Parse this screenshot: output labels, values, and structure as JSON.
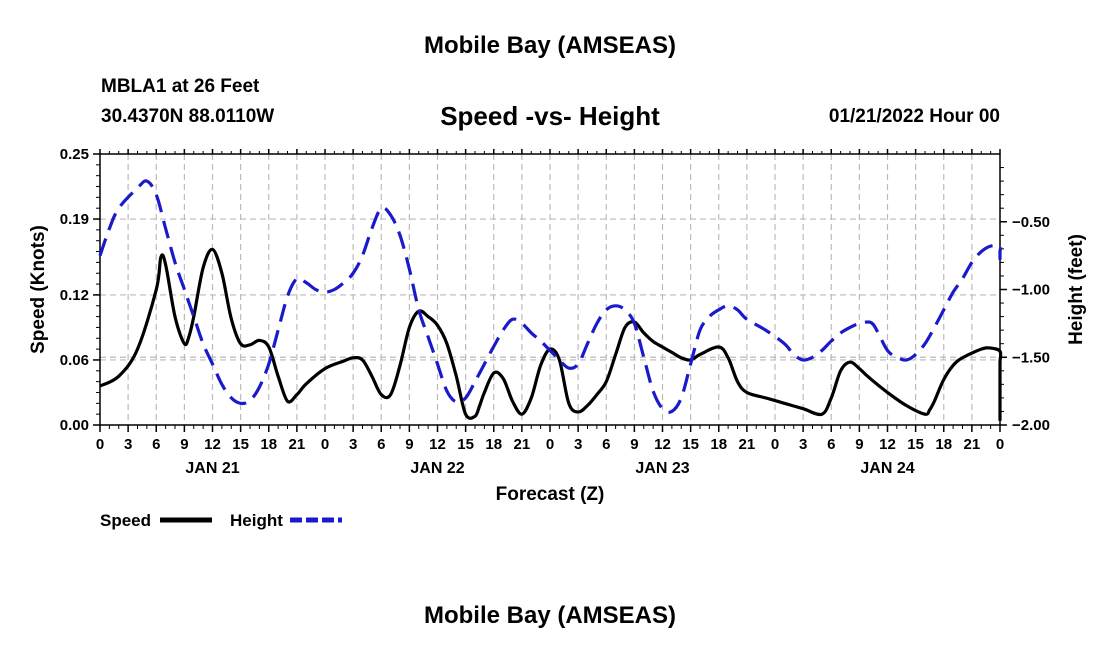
{
  "page": {
    "title": "Mobile Bay (AMSEAS)",
    "station": "MBLA1 at 26 Feet",
    "coords": "30.4370N  88.0110W",
    "subtitle": "Speed -vs- Height",
    "datetime": "01/21/2022 Hour 00",
    "bottom_title": "Mobile Bay (AMSEAS)"
  },
  "chart_data": {
    "type": "line",
    "title": "Speed -vs- Height",
    "xlabel": "Forecast (Z)",
    "ylabel": "Speed (Knots)",
    "y2label": "Height (feet)",
    "x_range_hours": [
      0,
      96
    ],
    "x_tick_step_hours": 3,
    "x_tick_labels": [
      "0",
      "3",
      "6",
      "9",
      "12",
      "15",
      "18",
      "21",
      "0",
      "3",
      "6",
      "9",
      "12",
      "15",
      "18",
      "21",
      "0",
      "3",
      "6",
      "9",
      "12",
      "15",
      "18",
      "21",
      "0",
      "3",
      "6",
      "9",
      "12",
      "15",
      "18",
      "21",
      "0"
    ],
    "day_labels": [
      {
        "hour": 12,
        "label": "JAN 21"
      },
      {
        "hour": 36,
        "label": "JAN 22"
      },
      {
        "hour": 60,
        "label": "JAN 23"
      },
      {
        "hour": 84,
        "label": "JAN 24"
      }
    ],
    "ylim": [
      0,
      0.25
    ],
    "y_ticks": [
      0.0,
      0.06,
      0.12,
      0.19,
      0.25
    ],
    "y_tick_labels": [
      "0.00",
      "0.06",
      "0.12",
      "0.19",
      "0.25"
    ],
    "y2lim": [
      -2.0,
      -0.0
    ],
    "y2_ticks": [
      -2.0,
      -1.5,
      -1.0,
      -0.5
    ],
    "y2_tick_labels": [
      "−2.00",
      "−1.50",
      "−1.00",
      "−0.50"
    ],
    "grid": true,
    "legend_position": "bottom-left",
    "colors": {
      "speed": "#000000",
      "height": "#1a1acc",
      "grid": "#bbbbbb"
    },
    "series": [
      {
        "name": "Speed",
        "axis": "left",
        "color": "#000000",
        "dash": "solid",
        "points": [
          [
            0,
            0.036
          ],
          [
            2,
            0.045
          ],
          [
            4,
            0.07
          ],
          [
            6,
            0.125
          ],
          [
            6.5,
            0.155
          ],
          [
            7,
            0.148
          ],
          [
            8,
            0.1
          ],
          [
            9,
            0.075
          ],
          [
            9.5,
            0.082
          ],
          [
            10,
            0.1
          ],
          [
            11,
            0.145
          ],
          [
            12,
            0.162
          ],
          [
            13,
            0.14
          ],
          [
            14,
            0.098
          ],
          [
            15,
            0.075
          ],
          [
            16,
            0.074
          ],
          [
            17,
            0.078
          ],
          [
            18,
            0.072
          ],
          [
            19,
            0.045
          ],
          [
            20,
            0.022
          ],
          [
            21,
            0.028
          ],
          [
            22,
            0.038
          ],
          [
            24,
            0.052
          ],
          [
            26,
            0.059
          ],
          [
            27,
            0.062
          ],
          [
            28,
            0.06
          ],
          [
            29,
            0.045
          ],
          [
            30,
            0.028
          ],
          [
            31,
            0.028
          ],
          [
            32,
            0.055
          ],
          [
            33,
            0.09
          ],
          [
            34,
            0.105
          ],
          [
            35,
            0.1
          ],
          [
            36,
            0.092
          ],
          [
            37,
            0.075
          ],
          [
            38,
            0.045
          ],
          [
            39,
            0.01
          ],
          [
            40,
            0.008
          ],
          [
            40.5,
            0.018
          ],
          [
            41,
            0.03
          ],
          [
            42,
            0.048
          ],
          [
            43,
            0.043
          ],
          [
            44,
            0.022
          ],
          [
            45,
            0.01
          ],
          [
            46,
            0.025
          ],
          [
            47,
            0.055
          ],
          [
            48,
            0.07
          ],
          [
            49,
            0.06
          ],
          [
            50,
            0.02
          ],
          [
            51,
            0.012
          ],
          [
            52,
            0.018
          ],
          [
            53,
            0.028
          ],
          [
            54,
            0.04
          ],
          [
            55,
            0.065
          ],
          [
            56,
            0.09
          ],
          [
            57,
            0.095
          ],
          [
            58,
            0.085
          ],
          [
            59,
            0.077
          ],
          [
            60,
            0.072
          ],
          [
            61,
            0.067
          ],
          [
            62,
            0.062
          ],
          [
            63,
            0.06
          ],
          [
            64,
            0.065
          ],
          [
            66,
            0.072
          ],
          [
            67,
            0.062
          ],
          [
            68,
            0.04
          ],
          [
            69,
            0.03
          ],
          [
            71,
            0.025
          ],
          [
            73,
            0.02
          ],
          [
            75,
            0.015
          ],
          [
            77,
            0.01
          ],
          [
            78,
            0.025
          ],
          [
            79,
            0.05
          ],
          [
            80,
            0.058
          ],
          [
            81,
            0.052
          ],
          [
            82,
            0.044
          ],
          [
            84,
            0.03
          ],
          [
            86,
            0.018
          ],
          [
            88,
            0.01
          ],
          [
            88.5,
            0.014
          ],
          [
            89,
            0.022
          ],
          [
            90,
            0.042
          ],
          [
            91,
            0.055
          ],
          [
            92,
            0.062
          ],
          [
            94,
            0.07
          ],
          [
            95,
            0.071
          ],
          [
            96,
            0.068
          ],
          [
            97,
            0.058
          ],
          [
            98,
            0.045
          ],
          [
            99,
            0.025
          ],
          [
            99.5,
            0.012
          ],
          [
            100,
            0.004
          ]
        ]
      },
      {
        "name": "Height",
        "axis": "right",
        "color": "#1a1acc",
        "dash": "dashed",
        "points": [
          [
            0,
            -0.75
          ],
          [
            1,
            -0.55
          ],
          [
            2,
            -0.4
          ],
          [
            4,
            -0.25
          ],
          [
            5,
            -0.2
          ],
          [
            6,
            -0.3
          ],
          [
            7,
            -0.55
          ],
          [
            8,
            -0.8
          ],
          [
            9,
            -1.0
          ],
          [
            10,
            -1.2
          ],
          [
            11,
            -1.4
          ],
          [
            12,
            -1.55
          ],
          [
            13,
            -1.7
          ],
          [
            14,
            -1.8
          ],
          [
            15,
            -1.84
          ],
          [
            16,
            -1.82
          ],
          [
            17,
            -1.72
          ],
          [
            18,
            -1.55
          ],
          [
            19,
            -1.3
          ],
          [
            20,
            -1.05
          ],
          [
            21,
            -0.92
          ],
          [
            22,
            -0.95
          ],
          [
            23,
            -1.0
          ],
          [
            24,
            -1.02
          ],
          [
            25,
            -1.0
          ],
          [
            26,
            -0.95
          ],
          [
            27,
            -0.88
          ],
          [
            28,
            -0.75
          ],
          [
            29,
            -0.55
          ],
          [
            30,
            -0.4
          ],
          [
            31,
            -0.45
          ],
          [
            32,
            -0.6
          ],
          [
            33,
            -0.85
          ],
          [
            34,
            -1.15
          ],
          [
            35,
            -1.35
          ],
          [
            36,
            -1.55
          ],
          [
            37,
            -1.75
          ],
          [
            38,
            -1.83
          ],
          [
            39,
            -1.8
          ],
          [
            40,
            -1.68
          ],
          [
            41,
            -1.55
          ],
          [
            42,
            -1.42
          ],
          [
            43,
            -1.3
          ],
          [
            44,
            -1.22
          ],
          [
            45,
            -1.25
          ],
          [
            46,
            -1.32
          ],
          [
            47,
            -1.38
          ],
          [
            48,
            -1.45
          ],
          [
            49,
            -1.52
          ],
          [
            50,
            -1.58
          ],
          [
            51,
            -1.55
          ],
          [
            52,
            -1.4
          ],
          [
            53,
            -1.25
          ],
          [
            54,
            -1.15
          ],
          [
            55,
            -1.12
          ],
          [
            56,
            -1.15
          ],
          [
            57,
            -1.25
          ],
          [
            58,
            -1.5
          ],
          [
            59,
            -1.75
          ],
          [
            60,
            -1.88
          ],
          [
            61,
            -1.9
          ],
          [
            62,
            -1.8
          ],
          [
            63,
            -1.55
          ],
          [
            64,
            -1.3
          ],
          [
            65,
            -1.2
          ],
          [
            66,
            -1.15
          ],
          [
            67,
            -1.12
          ],
          [
            68,
            -1.15
          ],
          [
            69,
            -1.22
          ],
          [
            71,
            -1.3
          ],
          [
            73,
            -1.4
          ],
          [
            74,
            -1.48
          ],
          [
            75,
            -1.52
          ],
          [
            76,
            -1.5
          ],
          [
            77,
            -1.45
          ],
          [
            78,
            -1.38
          ],
          [
            79,
            -1.32
          ],
          [
            80,
            -1.28
          ],
          [
            81,
            -1.25
          ],
          [
            82,
            -1.24
          ],
          [
            82.5,
            -1.26
          ],
          [
            83,
            -1.32
          ],
          [
            84,
            -1.45
          ],
          [
            85,
            -1.5
          ],
          [
            86,
            -1.52
          ],
          [
            87,
            -1.48
          ],
          [
            88,
            -1.4
          ],
          [
            89,
            -1.28
          ],
          [
            90,
            -1.15
          ],
          [
            91,
            -1.02
          ],
          [
            92,
            -0.92
          ],
          [
            93,
            -0.8
          ],
          [
            94,
            -0.72
          ],
          [
            95,
            -0.68
          ],
          [
            96,
            -0.68
          ],
          [
            97,
            -0.72
          ],
          [
            98,
            -0.78
          ]
        ]
      }
    ],
    "legend": [
      {
        "label": "Speed",
        "series": "Speed"
      },
      {
        "label": "Height",
        "series": "Height"
      }
    ]
  }
}
